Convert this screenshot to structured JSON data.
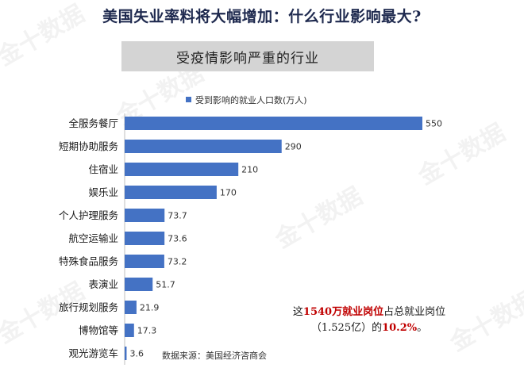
{
  "title": "美国失业率料将大幅增加：什么行业影响最大?",
  "subtitle": "受疫情影响严重的行业",
  "watermark": "金十数据",
  "source": "数据来源：美国经济咨商会",
  "annotation": {
    "part1": "这",
    "highlight1": "1540万就业岗位",
    "part2": "占总就业岗位（1.525亿）的",
    "highlight2": "10.2%",
    "part3": "。"
  },
  "chart_data": {
    "type": "bar",
    "orientation": "horizontal",
    "categories": [
      "全服务餐厅",
      "短期协助服务",
      "住宿业",
      "娱乐业",
      "个人护理服务",
      "航空运输业",
      "特殊食品服务",
      "表演业",
      "旅行规划服务",
      "博物馆等",
      "观光游览车"
    ],
    "series": [
      {
        "name": "受到影响的就业人口数(万人)",
        "values": [
          550,
          290,
          210,
          170,
          73.7,
          73.6,
          73.2,
          51.7,
          21.9,
          17.3,
          3.6
        ],
        "labels": [
          "550",
          "290",
          "210",
          "170",
          "73.7",
          "73.6",
          "73.2",
          "51.7",
          "21.9",
          "17.3",
          "3.6"
        ]
      }
    ],
    "xlim": [
      0,
      550
    ],
    "grid": false,
    "legend": "top",
    "colors": {
      "bar": "#4472c4"
    }
  }
}
